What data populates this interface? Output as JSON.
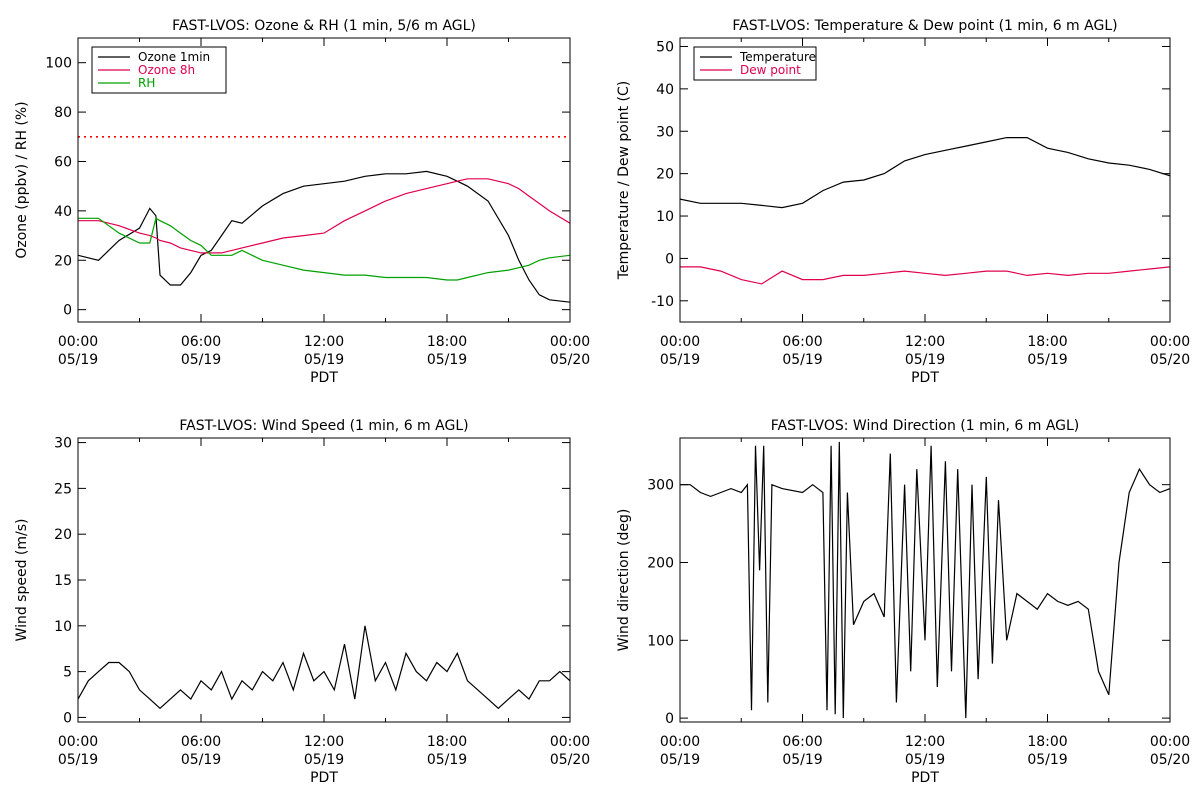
{
  "chart_data": [
    {
      "type": "line",
      "title": "FAST-LVOS: Ozone & RH (1 min, 5/6 m AGL)",
      "xlabel": "PDT",
      "ylabel": "Ozone (ppbv) / RH (%)",
      "xlim": [
        "2024-05-19T00:00",
        "2024-05-20T00:00"
      ],
      "ylim": [
        -5,
        110
      ],
      "xticks": [
        {
          "time": "00:00",
          "date": "05/19"
        },
        {
          "time": "06:00",
          "date": "05/19"
        },
        {
          "time": "12:00",
          "date": "05/19"
        },
        {
          "time": "18:00",
          "date": "05/19"
        },
        {
          "time": "00:00",
          "date": "05/20"
        }
      ],
      "yticks": [
        0,
        20,
        40,
        60,
        80,
        100
      ],
      "legend_position": "top-left",
      "x_hours": [
        0,
        1,
        2,
        3,
        3.5,
        3.8,
        4.0,
        4.5,
        5.0,
        5.5,
        6,
        6.5,
        7,
        7.5,
        8,
        9,
        10,
        11,
        12,
        13,
        14,
        15,
        16,
        17,
        18,
        18.5,
        19,
        20,
        21,
        21.5,
        22,
        22.5,
        23,
        24
      ],
      "reference_lines": [
        {
          "value": 70,
          "color": "#ff0000",
          "style": "dotted"
        }
      ],
      "series": [
        {
          "name": "Ozone 1min",
          "color": "#000000",
          "values": [
            22,
            20,
            28,
            33,
            41,
            38,
            14,
            10,
            10,
            15,
            22,
            24,
            30,
            36,
            35,
            42,
            47,
            50,
            51,
            52,
            54,
            55,
            55,
            56,
            54,
            52,
            50,
            44,
            30,
            20,
            12,
            6,
            4,
            3
          ]
        },
        {
          "name": "Ozone 8h",
          "color": "#e0004c",
          "values": [
            36,
            36,
            34,
            31,
            30,
            29,
            28,
            27,
            25,
            24,
            23,
            23,
            23,
            24,
            25,
            27,
            29,
            30,
            31,
            36,
            40,
            44,
            47,
            49,
            51,
            52,
            53,
            53,
            51,
            49,
            46,
            43,
            40,
            35
          ]
        },
        {
          "name": "RH",
          "color": "#00a000",
          "values": [
            37,
            37,
            31,
            27,
            27,
            37,
            36,
            34,
            31,
            28,
            26,
            22,
            22,
            22,
            24,
            20,
            18,
            16,
            15,
            14,
            14,
            13,
            13,
            13,
            12,
            12,
            13,
            15,
            16,
            17,
            18,
            20,
            21,
            22
          ]
        }
      ]
    },
    {
      "type": "line",
      "title": "FAST-LVOS: Temperature & Dew point (1 min, 6 m AGL)",
      "xlabel": "PDT",
      "ylabel": "Temperature / Dew point (C)",
      "xlim": [
        "2024-05-19T00:00",
        "2024-05-20T00:00"
      ],
      "ylim": [
        -15,
        52
      ],
      "xticks": [
        {
          "time": "00:00",
          "date": "05/19"
        },
        {
          "time": "06:00",
          "date": "05/19"
        },
        {
          "time": "12:00",
          "date": "05/19"
        },
        {
          "time": "18:00",
          "date": "05/19"
        },
        {
          "time": "00:00",
          "date": "05/20"
        }
      ],
      "yticks": [
        -10,
        0,
        10,
        20,
        30,
        40,
        50
      ],
      "legend_position": "top-left",
      "x_hours": [
        0,
        1,
        2,
        3,
        4,
        5,
        6,
        7,
        8,
        9,
        10,
        11,
        12,
        13,
        14,
        15,
        16,
        17,
        18,
        19,
        20,
        21,
        22,
        23,
        24
      ],
      "series": [
        {
          "name": "Temperature",
          "color": "#000000",
          "values": [
            14,
            13,
            13,
            13,
            12.5,
            12,
            13,
            16,
            18,
            18.5,
            20,
            23,
            24.5,
            25.5,
            26.5,
            27.5,
            28.5,
            28.5,
            26,
            25,
            23.5,
            22.5,
            22,
            21,
            19.5
          ]
        },
        {
          "name": "Dew point",
          "color": "#e0004c",
          "values": [
            -2,
            -2,
            -3,
            -5,
            -6,
            -3,
            -5,
            -5,
            -4,
            -4,
            -3.5,
            -3,
            -3.5,
            -4,
            -3.5,
            -3,
            -3,
            -4,
            -3.5,
            -4,
            -3.5,
            -3.5,
            -3,
            -2.5,
            -2
          ]
        }
      ]
    },
    {
      "type": "line",
      "title": "FAST-LVOS: Wind Speed (1 min, 6 m AGL)",
      "xlabel": "PDT",
      "ylabel": "Wind speed (m/s)",
      "xlim": [
        "2024-05-19T00:00",
        "2024-05-20T00:00"
      ],
      "ylim": [
        -0.5,
        30.5
      ],
      "xticks": [
        {
          "time": "00:00",
          "date": "05/19"
        },
        {
          "time": "06:00",
          "date": "05/19"
        },
        {
          "time": "12:00",
          "date": "05/19"
        },
        {
          "time": "18:00",
          "date": "05/19"
        },
        {
          "time": "00:00",
          "date": "05/20"
        }
      ],
      "yticks": [
        0,
        5,
        10,
        15,
        20,
        25,
        30
      ],
      "x_hours": [
        0,
        0.5,
        1,
        1.5,
        2,
        2.5,
        3,
        3.5,
        4,
        4.5,
        5,
        5.5,
        6,
        6.5,
        7,
        7.5,
        8,
        8.5,
        9,
        9.5,
        10,
        10.5,
        11,
        11.5,
        12,
        12.5,
        13,
        13.5,
        14,
        14.5,
        15,
        15.5,
        16,
        16.5,
        17,
        17.5,
        18,
        18.5,
        19,
        19.5,
        20,
        20.5,
        21,
        21.5,
        22,
        22.5,
        23,
        23.5,
        24
      ],
      "series": [
        {
          "name": "",
          "color": "#000000",
          "values": [
            2,
            4,
            5,
            6,
            6,
            5,
            3,
            2,
            1,
            2,
            3,
            2,
            4,
            3,
            5,
            2,
            4,
            3,
            5,
            4,
            6,
            3,
            7,
            4,
            5,
            3,
            8,
            2,
            10,
            4,
            6,
            3,
            7,
            5,
            4,
            6,
            5,
            7,
            4,
            3,
            2,
            1,
            2,
            3,
            2,
            4,
            4,
            5,
            4
          ]
        }
      ]
    },
    {
      "type": "line",
      "title": "FAST-LVOS: Wind Direction (1 min, 6 m AGL)",
      "xlabel": "PDT",
      "ylabel": "Wind direction (deg)",
      "xlim": [
        "2024-05-19T00:00",
        "2024-05-20T00:00"
      ],
      "ylim": [
        -5,
        360
      ],
      "xticks": [
        {
          "time": "00:00",
          "date": "05/19"
        },
        {
          "time": "06:00",
          "date": "05/19"
        },
        {
          "time": "12:00",
          "date": "05/19"
        },
        {
          "time": "18:00",
          "date": "05/19"
        },
        {
          "time": "00:00",
          "date": "05/20"
        }
      ],
      "yticks": [
        0,
        100,
        200,
        300
      ],
      "x_hours": [
        0,
        0.5,
        1,
        1.5,
        2,
        2.5,
        3,
        3.3,
        3.5,
        3.7,
        3.9,
        4.1,
        4.3,
        4.5,
        5,
        6,
        6.5,
        7,
        7.2,
        7.4,
        7.6,
        7.8,
        8,
        8.2,
        8.5,
        9,
        9.5,
        10,
        10.3,
        10.6,
        11,
        11.3,
        11.6,
        12,
        12.3,
        12.6,
        13,
        13.3,
        13.6,
        14,
        14.3,
        14.6,
        15,
        15.3,
        15.6,
        16,
        16.5,
        17,
        17.5,
        18,
        18.5,
        19,
        19.5,
        20,
        20.5,
        21,
        21.5,
        22,
        22.5,
        23,
        23.5,
        24
      ],
      "series": [
        {
          "name": "",
          "color": "#000000",
          "values": [
            300,
            300,
            290,
            285,
            290,
            295,
            290,
            300,
            10,
            350,
            190,
            350,
            20,
            300,
            295,
            290,
            300,
            290,
            10,
            350,
            5,
            355,
            0,
            290,
            120,
            150,
            160,
            130,
            340,
            20,
            300,
            60,
            320,
            100,
            350,
            40,
            330,
            60,
            320,
            0,
            300,
            50,
            310,
            70,
            280,
            100,
            160,
            150,
            140,
            160,
            150,
            145,
            150,
            140,
            60,
            30,
            200,
            290,
            320,
            300,
            290,
            295
          ]
        }
      ]
    }
  ]
}
